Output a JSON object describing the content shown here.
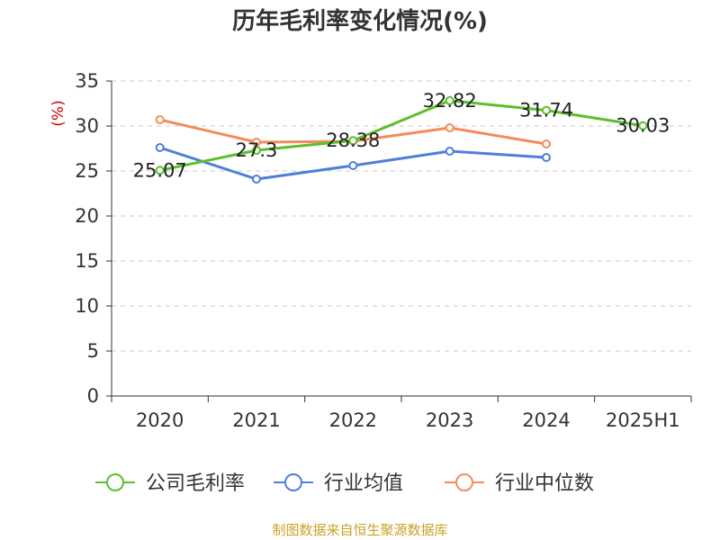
{
  "chart_data": {
    "type": "line",
    "title": "历年毛利率变化情况(%)",
    "ylabel": "(%)",
    "xlabel": "",
    "categories": [
      "2020",
      "2021",
      "2022",
      "2023",
      "2024",
      "2025H1"
    ],
    "ylim": [
      0,
      35
    ],
    "yticks": [
      0,
      5,
      10,
      15,
      20,
      25,
      30,
      35
    ],
    "grid": true,
    "legend_position": "bottom",
    "series": [
      {
        "name": "公司毛利率",
        "color": "#5cbf2a",
        "labeled": true,
        "values": [
          25.07,
          27.3,
          28.38,
          32.82,
          31.74,
          30.03
        ]
      },
      {
        "name": "行业均值",
        "color": "#4f7fd9",
        "labeled": false,
        "values": [
          27.6,
          24.1,
          25.6,
          27.2,
          26.5,
          null
        ]
      },
      {
        "name": "行业中位数",
        "color": "#f48b5a",
        "labeled": false,
        "values": [
          30.7,
          28.2,
          28.3,
          29.8,
          28.0,
          null
        ]
      }
    ],
    "source": "制图数据来自恒生聚源数据库"
  }
}
